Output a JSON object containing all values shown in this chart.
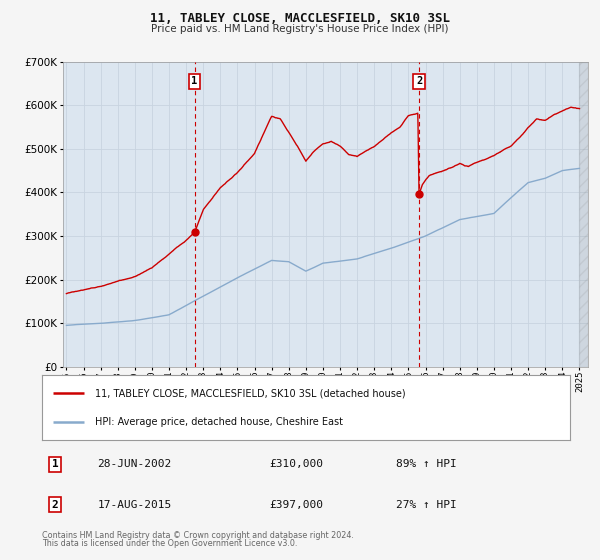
{
  "title": "11, TABLEY CLOSE, MACCLESFIELD, SK10 3SL",
  "subtitle": "Price paid vs. HM Land Registry's House Price Index (HPI)",
  "background_color": "#f5f5f5",
  "plot_bg_color": "#dce6f0",
  "grid_color": "#c8d4e0",
  "ylim": [
    0,
    700000
  ],
  "yticks": [
    0,
    100000,
    200000,
    300000,
    400000,
    500000,
    600000,
    700000
  ],
  "xlim_start": 1994.8,
  "xlim_end": 2025.5,
  "xticks": [
    1995,
    1996,
    1997,
    1998,
    1999,
    2000,
    2001,
    2002,
    2003,
    2004,
    2005,
    2006,
    2007,
    2008,
    2009,
    2010,
    2011,
    2012,
    2013,
    2014,
    2015,
    2016,
    2017,
    2018,
    2019,
    2020,
    2021,
    2022,
    2023,
    2024,
    2025
  ],
  "sale1_x": 2002.49,
  "sale1_y": 310000,
  "sale1_label": "1",
  "sale1_date": "28-JUN-2002",
  "sale1_price": "£310,000",
  "sale1_hpi": "89% ↑ HPI",
  "sale2_x": 2015.62,
  "sale2_y": 397000,
  "sale2_label": "2",
  "sale2_date": "17-AUG-2015",
  "sale2_price": "£397,000",
  "sale2_hpi": "27% ↑ HPI",
  "house_line_color": "#cc0000",
  "hpi_line_color": "#88aacc",
  "legend_house_label": "11, TABLEY CLOSE, MACCLESFIELD, SK10 3SL (detached house)",
  "legend_hpi_label": "HPI: Average price, detached house, Cheshire East",
  "footer_line1": "Contains HM Land Registry data © Crown copyright and database right 2024.",
  "footer_line2": "This data is licensed under the Open Government Licence v3.0.",
  "hpi_anchors_x": [
    1995,
    1997,
    1999,
    2001,
    2003,
    2005,
    2007,
    2008,
    2009,
    2010,
    2012,
    2014,
    2016,
    2018,
    2020,
    2021,
    2022,
    2023,
    2024,
    2025
  ],
  "hpi_anchors_y": [
    95000,
    100000,
    107000,
    120000,
    163000,
    205000,
    245000,
    242000,
    220000,
    238000,
    248000,
    272000,
    300000,
    338000,
    352000,
    388000,
    422000,
    432000,
    450000,
    455000
  ],
  "house_anchors_x": [
    1995,
    1996,
    1997,
    1998,
    1999,
    2000,
    2001,
    2002.0,
    2002.49,
    2003,
    2004,
    2005,
    2006,
    2007.0,
    2007.5,
    2008.0,
    2008.5,
    2009.0,
    2009.5,
    2010.0,
    2010.5,
    2011.0,
    2011.5,
    2012.0,
    2012.5,
    2013.0,
    2013.5,
    2014.0,
    2014.5,
    2015.0,
    2015.55,
    2015.62,
    2015.8,
    2016.2,
    2016.8,
    2017.5,
    2018.0,
    2018.5,
    2019.0,
    2019.5,
    2020.0,
    2020.5,
    2021.0,
    2021.5,
    2022.0,
    2022.5,
    2023.0,
    2023.5,
    2024.0,
    2024.5,
    2025.0
  ],
  "house_anchors_y": [
    168000,
    175000,
    185000,
    198000,
    210000,
    228000,
    260000,
    292000,
    310000,
    365000,
    415000,
    448000,
    492000,
    575000,
    570000,
    540000,
    510000,
    475000,
    498000,
    515000,
    522000,
    512000,
    492000,
    488000,
    498000,
    508000,
    522000,
    538000,
    552000,
    578000,
    583000,
    397000,
    418000,
    438000,
    448000,
    458000,
    468000,
    462000,
    472000,
    478000,
    488000,
    498000,
    508000,
    528000,
    552000,
    572000,
    568000,
    582000,
    590000,
    598000,
    596000
  ]
}
